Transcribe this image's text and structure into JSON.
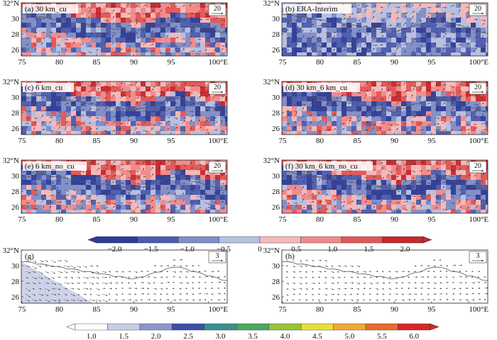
{
  "figure": {
    "panels": [
      {
        "id": "a",
        "title": "(a) 30 km_cu",
        "ref_vector": "20",
        "style": "diff"
      },
      {
        "id": "b",
        "title": "(b) ERA-Interim",
        "ref_vector": "20",
        "style": "diff"
      },
      {
        "id": "c",
        "title": "(c) 6 km_cu",
        "ref_vector": "20",
        "style": "diff"
      },
      {
        "id": "d",
        "title": "(d) 30 km_6 km_cu",
        "ref_vector": "20",
        "style": "diff"
      },
      {
        "id": "e",
        "title": "(e) 6 km_no_cu",
        "ref_vector": "20",
        "style": "diff"
      },
      {
        "id": "f",
        "title": "(f) 30 km_6 km_no_cu",
        "ref_vector": "20",
        "style": "diff"
      },
      {
        "id": "g",
        "title": "(g)",
        "ref_vector": "3",
        "style": "flow"
      },
      {
        "id": "h",
        "title": "(h)",
        "ref_vector": "3",
        "style": "flow"
      }
    ],
    "x_ticks": [
      "75",
      "80",
      "85",
      "90",
      "95",
      "100°E"
    ],
    "y_ticks": [
      "32°N",
      "30",
      "28",
      "26"
    ],
    "colorbar1": {
      "ticks": [
        "−2.0",
        "−1.5",
        "−1.0",
        "−0.5",
        "0",
        "0.5",
        "1.0",
        "1.5",
        "2.0"
      ],
      "colors": [
        "#2b3d9a",
        "#4a5db0",
        "#7d8ec9",
        "#b5c0e2",
        "#f6b8b8",
        "#f08a8a",
        "#e25656",
        "#c8272b"
      ]
    },
    "colorbar2": {
      "ticks": [
        "1.0",
        "1.5",
        "2.0",
        "2.5",
        "3.0",
        "3.5",
        "4.0",
        "4.5",
        "5.0",
        "5.5",
        "6.0"
      ],
      "colors": [
        "#ffffff",
        "#c9cde6",
        "#8c96cc",
        "#3f4ea8",
        "#3a8f8f",
        "#4aa860",
        "#9ac23a",
        "#e6e03a",
        "#f0a83a",
        "#e86a2e",
        "#d6262a"
      ]
    }
  }
}
